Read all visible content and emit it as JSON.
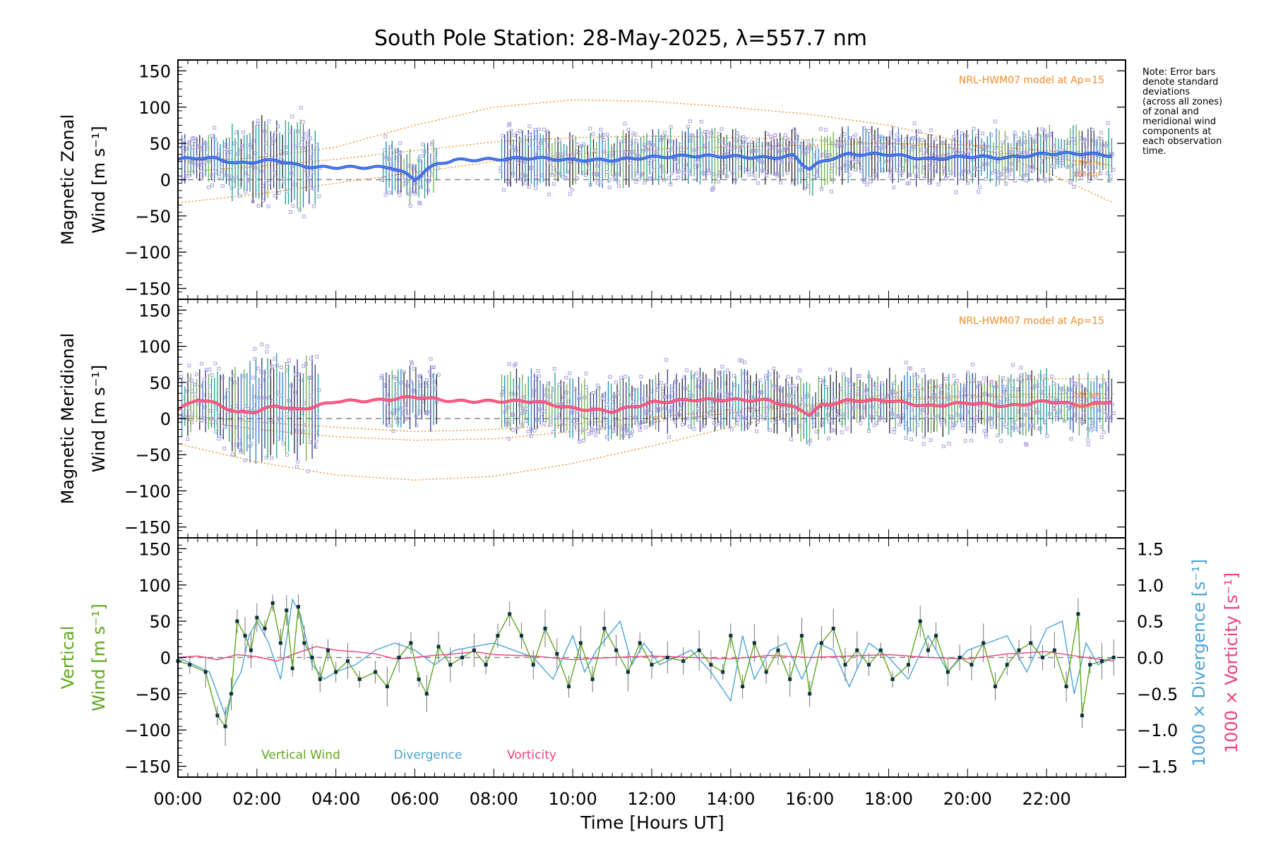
{
  "title": "South Pole Station: 28-May-2025, λ=557.7 nm",
  "note_lines": [
    "Note: Error bars",
    "denote standard",
    "deviations",
    "(across all zones)",
    "of zonal and",
    "meridional wind",
    "components at",
    "each observation",
    "time."
  ],
  "colors": {
    "zonal_fit": "#2a4ee8",
    "zonal_fit_inner": "#5aa6e0",
    "meridional_fit": "#f23c6a",
    "meridional_fit_inner": "#ff7ca0",
    "model": "#f28c28",
    "zone_points": "#a9a0dd",
    "vertical": "#5fa81e",
    "divergence": "#4aa3d8",
    "vorticity": "#ee3f7d",
    "points": "#0c3040",
    "dashed": "#888888"
  },
  "chart_data": [
    {
      "panel": "zonal",
      "type": "line",
      "ylabel_lines": [
        "Magnetic Zonal",
        "Wind [m s⁻¹]"
      ],
      "ylim": [
        -165,
        165
      ],
      "yticks": [
        -150,
        -100,
        -50,
        0,
        50,
        100,
        150
      ],
      "xlim": [
        0,
        24
      ],
      "model_label": "NRL-HWM07 model at Ap=15",
      "model_small_labels": [
        "120 km",
        "150 km"
      ],
      "fit": {
        "x": [
          0,
          0.5,
          1.0,
          1.5,
          2.0,
          2.5,
          3.0,
          3.5,
          4.0,
          4.5,
          5.0,
          5.4,
          5.7,
          6.0,
          6.3,
          6.6,
          7.0,
          8.0,
          9.0,
          10.0,
          11.0,
          12.0,
          13.0,
          14.0,
          15.0,
          15.6,
          15.8,
          16.0,
          16.2,
          16.6,
          17.0,
          18.0,
          19.0,
          20.0,
          21.0,
          22.0,
          23.0,
          23.7
        ],
        "y": [
          28,
          30,
          29,
          22,
          25,
          27,
          20,
          17,
          17,
          17,
          17,
          17,
          10,
          0,
          14,
          22,
          27,
          28,
          30,
          27,
          27,
          31,
          33,
          32,
          30,
          33,
          22,
          15,
          22,
          30,
          35,
          35,
          28,
          32,
          30,
          36,
          36,
          33
        ]
      },
      "model": [
        {
          "x": [
            0,
            2,
            4,
            6,
            8,
            10,
            12,
            14,
            16,
            18,
            20,
            22,
            23.7
          ],
          "y": [
            25,
            30,
            45,
            75,
            100,
            110,
            108,
            100,
            90,
            75,
            50,
            10,
            -32
          ]
        },
        {
          "x": [
            0,
            2,
            4,
            6,
            8,
            10,
            12,
            14,
            16,
            18,
            20,
            22,
            23.7
          ],
          "y": [
            -32,
            -20,
            -5,
            10,
            25,
            35,
            42,
            45,
            48,
            50,
            48,
            40,
            30
          ]
        },
        {
          "x": [
            0,
            2,
            4,
            6,
            8,
            10,
            12,
            14,
            16,
            18,
            20,
            22,
            23.7
          ],
          "y": [
            10,
            18,
            28,
            40,
            52,
            58,
            60,
            58,
            55,
            50,
            42,
            30,
            20
          ]
        }
      ],
      "error_bar_range": [
        0.1,
        23.7
      ],
      "error_bar_half_width": 35
    },
    {
      "panel": "meridional",
      "type": "line",
      "ylabel_lines": [
        "Magnetic Meridional",
        "Wind [m s⁻¹]"
      ],
      "ylim": [
        -165,
        165
      ],
      "yticks": [
        -150,
        -100,
        -50,
        0,
        50,
        100,
        150
      ],
      "xlim": [
        0,
        24
      ],
      "model_label": "NRL-HWM07 model at Ap=15",
      "model_small_labels": [
        "120 km",
        "150 km"
      ],
      "fit": {
        "x": [
          0,
          0.5,
          1.0,
          1.5,
          2.0,
          2.5,
          3.0,
          3.5,
          4.0,
          5.0,
          6.0,
          7.0,
          8.0,
          9.0,
          10.0,
          11.0,
          12.0,
          13.0,
          14.0,
          15.0,
          15.8,
          16.0,
          16.3,
          17.0,
          18.0,
          19.0,
          20.0,
          21.0,
          22.0,
          23.0,
          23.7
        ],
        "y": [
          12,
          27,
          20,
          8,
          10,
          18,
          12,
          17,
          24,
          25,
          30,
          24,
          24,
          24,
          14,
          10,
          22,
          26,
          26,
          25,
          12,
          5,
          18,
          25,
          25,
          17,
          22,
          17,
          24,
          18,
          25
        ]
      },
      "model": [
        {
          "x": [
            0,
            2,
            4,
            6,
            8,
            10,
            12,
            14,
            16,
            18,
            20,
            22,
            23.7
          ],
          "y": [
            -35,
            -60,
            -78,
            -85,
            -80,
            -62,
            -38,
            -12,
            12,
            35,
            50,
            55,
            55
          ]
        },
        {
          "x": [
            0,
            2,
            4,
            6,
            8,
            10,
            12,
            14,
            16,
            18,
            20,
            22,
            23.7
          ],
          "y": [
            0,
            -15,
            -25,
            -30,
            -28,
            -18,
            -5,
            8,
            18,
            25,
            30,
            30,
            28
          ]
        },
        {
          "x": [
            0,
            2,
            4,
            6,
            8,
            10,
            12,
            14,
            16,
            18,
            20,
            22,
            23.7
          ],
          "y": [
            5,
            -5,
            -12,
            -18,
            -15,
            -8,
            2,
            12,
            20,
            28,
            32,
            34,
            34
          ]
        }
      ],
      "error_bar_range": [
        0.1,
        23.7
      ],
      "error_bar_half_width": 40
    },
    {
      "panel": "vertical",
      "type": "line",
      "ylabel_lines": [
        "Vertical",
        "Wind [m s⁻¹]"
      ],
      "ylim": [
        -165,
        165
      ],
      "yticks": [
        -150,
        -100,
        -50,
        0,
        50,
        100,
        150
      ],
      "right_axis": {
        "ylim": [
          -1.65,
          1.65
        ],
        "ticks": [
          -1.5,
          -1.0,
          -0.5,
          0.0,
          0.5,
          1.0,
          1.5
        ],
        "tick_labels": [
          "−1.5",
          "−1.0",
          "−0.5",
          "0.0",
          "0.5",
          "1.0",
          "1.5"
        ]
      },
      "right_label_1": "1000 × Divergence [s⁻¹]",
      "right_label_2": "1000 × Vorticity [s⁻¹]",
      "xlim": [
        0,
        24
      ],
      "xlabel": "Time [Hours UT]",
      "xticks": [
        0,
        2,
        4,
        6,
        8,
        10,
        12,
        14,
        16,
        18,
        20,
        22
      ],
      "xtick_labels": [
        "00:00",
        "02:00",
        "04:00",
        "06:00",
        "08:00",
        "10:00",
        "12:00",
        "14:00",
        "16:00",
        "18:00",
        "20:00",
        "22:00"
      ],
      "legend": [
        "Vertical Wind",
        "Divergence",
        "Vorticity"
      ],
      "vertical_wind": {
        "x": [
          0.0,
          0.3,
          0.7,
          1.0,
          1.2,
          1.35,
          1.5,
          1.7,
          1.85,
          2.0,
          2.2,
          2.4,
          2.6,
          2.75,
          2.9,
          3.05,
          3.2,
          3.4,
          3.6,
          3.8,
          4.0,
          4.3,
          4.6,
          5.0,
          5.3,
          5.6,
          5.9,
          6.1,
          6.3,
          6.6,
          6.9,
          7.2,
          7.5,
          7.8,
          8.1,
          8.4,
          8.7,
          9.0,
          9.3,
          9.6,
          9.9,
          10.2,
          10.5,
          10.8,
          11.1,
          11.4,
          11.7,
          12.0,
          12.4,
          12.8,
          13.2,
          13.5,
          13.8,
          14.0,
          14.3,
          14.6,
          14.9,
          15.2,
          15.5,
          15.8,
          16.0,
          16.3,
          16.6,
          16.9,
          17.2,
          17.5,
          17.8,
          18.1,
          18.5,
          18.8,
          19.0,
          19.2,
          19.5,
          19.8,
          20.1,
          20.4,
          20.7,
          21.0,
          21.3,
          21.6,
          21.9,
          22.2,
          22.5,
          22.8,
          22.9,
          23.1,
          23.4,
          23.7
        ],
        "y": [
          -5,
          -10,
          -20,
          -80,
          -95,
          -50,
          50,
          30,
          10,
          55,
          40,
          75,
          20,
          65,
          -15,
          70,
          20,
          0,
          -30,
          10,
          -20,
          -5,
          -30,
          -20,
          -40,
          0,
          20,
          -30,
          -50,
          15,
          -10,
          0,
          10,
          -10,
          30,
          60,
          30,
          -10,
          40,
          5,
          -40,
          20,
          -30,
          40,
          10,
          -20,
          20,
          -10,
          0,
          -5,
          10,
          -10,
          -20,
          30,
          -40,
          20,
          -20,
          10,
          -30,
          30,
          -50,
          20,
          40,
          -10,
          10,
          -10,
          10,
          -30,
          -10,
          50,
          10,
          30,
          -20,
          0,
          -10,
          20,
          -40,
          -10,
          10,
          20,
          0,
          10,
          -40,
          60,
          -80,
          -10,
          -5,
          0
        ]
      },
      "divergence": {
        "x": [
          0.0,
          0.4,
          0.8,
          1.0,
          1.2,
          1.4,
          1.6,
          1.8,
          2.0,
          2.3,
          2.6,
          2.9,
          3.1,
          3.4,
          3.7,
          4.0,
          4.5,
          5.0,
          5.5,
          6.0,
          6.5,
          7.0,
          7.5,
          8.0,
          8.5,
          9.0,
          9.5,
          10.0,
          10.3,
          10.6,
          10.9,
          11.2,
          11.5,
          11.8,
          12.2,
          12.6,
          13.0,
          13.5,
          14.0,
          14.3,
          14.6,
          15.0,
          15.4,
          15.8,
          16.2,
          16.6,
          17.0,
          17.5,
          18.0,
          18.5,
          19.0,
          19.5,
          20.0,
          20.5,
          21.0,
          21.5,
          22.0,
          22.4,
          22.7,
          23.0,
          23.3,
          23.7
        ],
        "y": [
          0.0,
          -0.1,
          -0.2,
          -0.5,
          -0.8,
          -0.4,
          -0.2,
          0.3,
          0.5,
          0.2,
          -0.3,
          0.8,
          0.6,
          -0.1,
          -0.3,
          -0.2,
          -0.1,
          0.1,
          0.2,
          0.1,
          -0.1,
          0.1,
          0.15,
          0.2,
          0.1,
          0.0,
          -0.3,
          0.3,
          -0.2,
          0.1,
          0.3,
          0.5,
          -0.1,
          0.2,
          -0.1,
          0.0,
          0.1,
          -0.2,
          -0.6,
          0.3,
          -0.3,
          0.1,
          0.2,
          -0.3,
          0.2,
          0.1,
          -0.4,
          0.2,
          0.0,
          -0.3,
          0.3,
          -0.2,
          0.1,
          0.2,
          0.3,
          -0.2,
          0.4,
          0.5,
          -0.5,
          0.2,
          -0.1,
          0.0
        ]
      },
      "vorticity": {
        "x": [
          0,
          0.5,
          1.0,
          1.5,
          2.0,
          2.5,
          3.0,
          3.5,
          4.0,
          4.5,
          5.0,
          5.5,
          6.0,
          6.5,
          7.0,
          7.5,
          8.0,
          9.0,
          10.0,
          11.0,
          12.0,
          13.0,
          14.0,
          15.0,
          16.0,
          17.0,
          18.0,
          19.0,
          20.0,
          21.0,
          22.0,
          23.0,
          23.7
        ],
        "y": [
          0.0,
          0.02,
          -0.03,
          0.04,
          0.01,
          -0.05,
          0.06,
          0.15,
          0.1,
          0.08,
          0.05,
          -0.02,
          0.0,
          0.03,
          0.05,
          0.08,
          0.04,
          0.02,
          -0.03,
          0.0,
          0.02,
          0.0,
          -0.02,
          0.03,
          0.0,
          0.02,
          0.04,
          0.0,
          -0.02,
          0.05,
          0.08,
          0.0,
          -0.05
        ]
      }
    }
  ]
}
